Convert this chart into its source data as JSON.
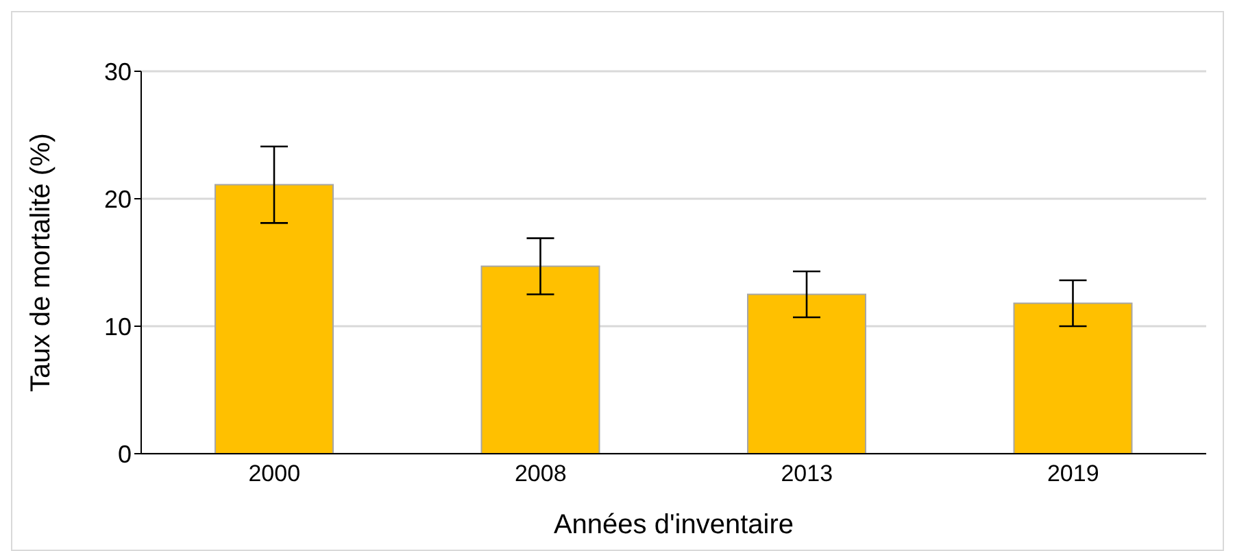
{
  "chart_data": {
    "type": "bar",
    "xlabel": "Années d'inventaire",
    "ylabel": "Taux de mortalité (%)",
    "categories": [
      "2000",
      "2008",
      "2013",
      "2019"
    ],
    "values": [
      21.1,
      14.7,
      12.5,
      11.8
    ],
    "errors": [
      3.0,
      2.2,
      1.8,
      1.8
    ],
    "color": "#ffc000",
    "ylim": [
      0,
      30
    ],
    "yticks": [
      0,
      10,
      20,
      30
    ],
    "grid": "y"
  }
}
